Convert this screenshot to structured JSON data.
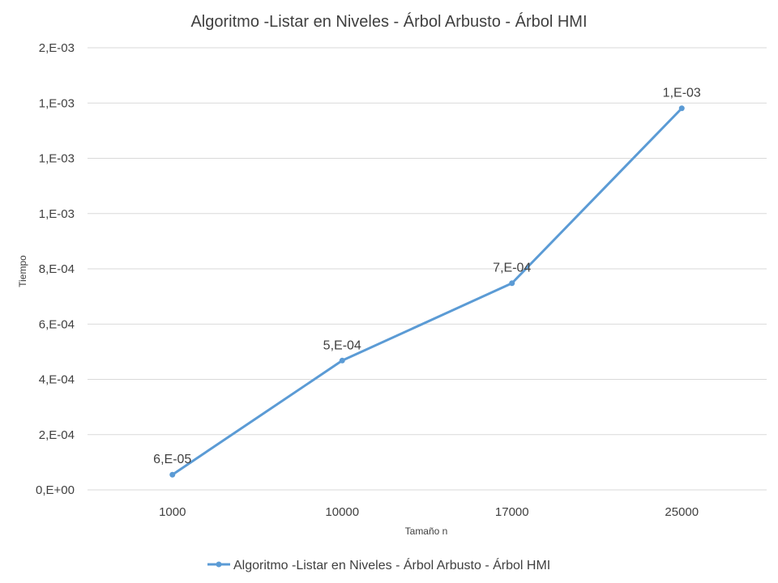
{
  "chart_data": {
    "type": "line",
    "title": "Algoritmo -Listar en Niveles - Árbol Arbusto - Árbol HMI",
    "xlabel": "Tamaño n",
    "ylabel": "Tiempo",
    "categories": [
      "1000",
      "10000",
      "17000",
      "25000"
    ],
    "series": [
      {
        "name": "Algoritmo -Listar en Niveles - Árbol Arbusto - Árbol HMI",
        "values": [
          5.5e-05,
          0.000468,
          0.000748,
          0.001381
        ],
        "labels": [
          "6,E-05",
          "5,E-04",
          "7,E-04",
          "1,E-03"
        ],
        "color": "#5b9bd5"
      }
    ],
    "ylim": [
      0,
      0.0016
    ],
    "yticks": [
      0,
      0.0002,
      0.0004,
      0.0006,
      0.0008,
      0.001,
      0.0012,
      0.0014,
      0.0016
    ],
    "ytick_labels": [
      "0,E+00",
      "2,E-04",
      "4,E-04",
      "6,E-04",
      "8,E-04",
      "1,E-03",
      "1,E-03",
      "1,E-03",
      "2,E-03"
    ],
    "grid": true,
    "legend_position": "bottom"
  }
}
